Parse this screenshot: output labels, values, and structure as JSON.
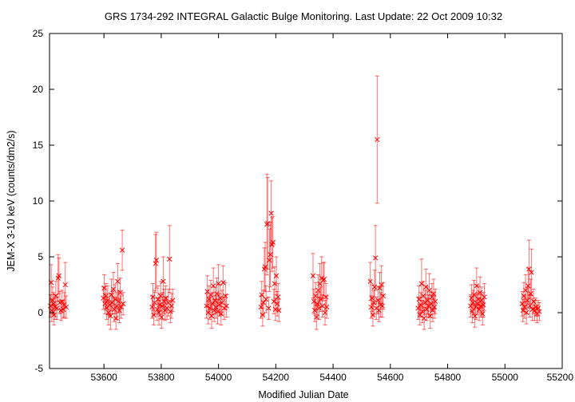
{
  "chart_data": {
    "type": "scatter",
    "title": "GRS 1734-292   INTEGRAL Galactic Bulge Monitoring.  Last Update: 22 Oct 2009 10:32",
    "xlabel": "Modified Julian Date",
    "ylabel": "JEM-X 3-10 keV (counts/dm2/s)",
    "xlim": [
      53410,
      55200
    ],
    "ylim": [
      -5,
      25
    ],
    "xticks": [
      53600,
      53800,
      54000,
      54200,
      54400,
      54600,
      54800,
      55000,
      55200
    ],
    "yticks": [
      -5,
      0,
      5,
      10,
      15,
      20,
      25
    ],
    "grid": false,
    "legend": "none",
    "colors": {
      "points": "#ff0000",
      "errorbars": "#ff0000",
      "axes": "#000000"
    },
    "points": [
      [
        53413,
        0.6,
        1.0
      ],
      [
        53416,
        2.7,
        1.6
      ],
      [
        53418,
        0.2,
        1.0
      ],
      [
        53421,
        1.1,
        1.2
      ],
      [
        53424,
        0.8,
        1.0
      ],
      [
        53426,
        -0.2,
        0.9
      ],
      [
        53429,
        0.5,
        1.1
      ],
      [
        53432,
        1.5,
        1.3
      ],
      [
        53436,
        0.4,
        1.0
      ],
      [
        53440,
        3.1,
        2.1
      ],
      [
        53443,
        3.3,
        1.6
      ],
      [
        53446,
        0.9,
        1.0
      ],
      [
        53450,
        0.2,
        0.9
      ],
      [
        53454,
        1.0,
        1.0
      ],
      [
        53458,
        0.3,
        0.8
      ],
      [
        53461,
        0.7,
        1.1
      ],
      [
        53465,
        2.5,
        2.0
      ],
      [
        53468,
        0.5,
        1.0
      ],
      [
        53598,
        1.3,
        1.0
      ],
      [
        53601,
        2.2,
        1.2
      ],
      [
        53604,
        0.8,
        0.9
      ],
      [
        53607,
        1.5,
        1.1
      ],
      [
        53610,
        0.4,
        1.0
      ],
      [
        53613,
        1.1,
        1.3
      ],
      [
        53616,
        0.0,
        1.1
      ],
      [
        53620,
        0.7,
        1.0
      ],
      [
        53623,
        -0.3,
        1.2
      ],
      [
        53626,
        1.6,
        1.4
      ],
      [
        53629,
        0.9,
        1.0
      ],
      [
        53633,
        2.1,
        1.5
      ],
      [
        53636,
        0.3,
        1.1
      ],
      [
        53639,
        1.2,
        1.3
      ],
      [
        53642,
        -0.5,
        1.0
      ],
      [
        53645,
        0.6,
        1.2
      ],
      [
        53648,
        2.8,
        1.6
      ],
      [
        53651,
        1.0,
        1.0
      ],
      [
        53654,
        0.2,
        1.1
      ],
      [
        53657,
        1.8,
        1.3
      ],
      [
        53660,
        0.5,
        1.0
      ],
      [
        53664,
        5.6,
        1.8
      ],
      [
        53667,
        0.8,
        1.0
      ],
      [
        53768,
        0.5,
        1.0
      ],
      [
        53771,
        1.4,
        1.2
      ],
      [
        53774,
        -0.2,
        0.9
      ],
      [
        53777,
        0.9,
        1.1
      ],
      [
        53780,
        4.4,
        2.6
      ],
      [
        53783,
        4.7,
        2.5
      ],
      [
        53786,
        0.3,
        1.0
      ],
      [
        53789,
        1.2,
        1.2
      ],
      [
        53792,
        0.0,
        1.1
      ],
      [
        53795,
        0.7,
        1.0
      ],
      [
        53798,
        1.5,
        1.3
      ],
      [
        53801,
        -0.4,
        1.0
      ],
      [
        53804,
        0.6,
        1.2
      ],
      [
        53807,
        2.8,
        2.2
      ],
      [
        53810,
        1.0,
        1.1
      ],
      [
        53813,
        0.2,
        0.9
      ],
      [
        53816,
        1.3,
        1.1
      ],
      [
        53820,
        0.4,
        1.0
      ],
      [
        53825,
        0.9,
        1.2
      ],
      [
        53829,
        4.8,
        3.0
      ],
      [
        53832,
        0.1,
        1.0
      ],
      [
        53836,
        0.6,
        1.1
      ],
      [
        53840,
        1.1,
        1.0
      ],
      [
        53958,
        0.6,
        1.1
      ],
      [
        53961,
        1.9,
        1.4
      ],
      [
        53964,
        0.0,
        1.0
      ],
      [
        53967,
        1.2,
        1.2
      ],
      [
        53970,
        0.4,
        1.0
      ],
      [
        53973,
        1.6,
        1.3
      ],
      [
        53976,
        -0.3,
        1.1
      ],
      [
        53979,
        0.8,
        1.0
      ],
      [
        53982,
        2.4,
        1.6
      ],
      [
        53985,
        0.2,
        1.0
      ],
      [
        53988,
        1.1,
        1.2
      ],
      [
        53991,
        0.5,
        1.0
      ],
      [
        53994,
        1.7,
        1.4
      ],
      [
        53997,
        0.1,
        1.1
      ],
      [
        54000,
        2.6,
        1.7
      ],
      [
        54003,
        0.7,
        1.0
      ],
      [
        54006,
        1.3,
        1.2
      ],
      [
        54009,
        -0.1,
        1.0
      ],
      [
        54012,
        0.9,
        1.1
      ],
      [
        54016,
        2.7,
        1.5
      ],
      [
        54020,
        0.4,
        1.0
      ],
      [
        54024,
        1.5,
        1.2
      ],
      [
        54028,
        0.6,
        1.0
      ],
      [
        54148,
        0.5,
        1.0
      ],
      [
        54151,
        1.6,
        1.2
      ],
      [
        54154,
        -0.2,
        1.0
      ],
      [
        54157,
        0.9,
        1.1
      ],
      [
        54160,
        3.9,
        1.9
      ],
      [
        54163,
        4.1,
        2.2
      ],
      [
        54166,
        1.2,
        1.2
      ],
      [
        54169,
        7.9,
        4.5
      ],
      [
        54172,
        8.0,
        4.1
      ],
      [
        54175,
        0.4,
        1.0
      ],
      [
        54178,
        4.7,
        2.8
      ],
      [
        54181,
        5.2,
        2.9
      ],
      [
        54184,
        8.9,
        2.9
      ],
      [
        54187,
        6.1,
        2.4
      ],
      [
        54190,
        6.3,
        2.3
      ],
      [
        54193,
        1.0,
        1.1
      ],
      [
        54196,
        2.6,
        1.5
      ],
      [
        54199,
        0.3,
        1.0
      ],
      [
        54202,
        3.3,
        1.7
      ],
      [
        54205,
        0.8,
        1.1
      ],
      [
        54208,
        1.4,
        1.2
      ],
      [
        54211,
        0.2,
        1.0
      ],
      [
        54330,
        3.3,
        2.0
      ],
      [
        54333,
        1.0,
        1.1
      ],
      [
        54336,
        0.2,
        1.0
      ],
      [
        54339,
        1.5,
        1.2
      ],
      [
        54342,
        -0.4,
        1.1
      ],
      [
        54345,
        0.8,
        1.0
      ],
      [
        54348,
        2.0,
        1.4
      ],
      [
        54351,
        0.4,
        1.0
      ],
      [
        54354,
        2.6,
        1.8
      ],
      [
        54357,
        1.2,
        1.1
      ],
      [
        54360,
        3.1,
        1.9
      ],
      [
        54363,
        0.6,
        1.0
      ],
      [
        54366,
        2.9,
        1.6
      ],
      [
        54369,
        3.0,
        1.5
      ],
      [
        54372,
        0.0,
        1.1
      ],
      [
        54375,
        1.4,
        1.2
      ],
      [
        54378,
        0.5,
        1.0
      ],
      [
        54530,
        2.8,
        1.7
      ],
      [
        54533,
        0.5,
        1.0
      ],
      [
        54536,
        1.3,
        1.2
      ],
      [
        54539,
        -0.2,
        1.0
      ],
      [
        54542,
        0.9,
        1.1
      ],
      [
        54545,
        2.3,
        1.5
      ],
      [
        54548,
        4.9,
        2.9
      ],
      [
        54551,
        0.4,
        1.0
      ],
      [
        54554,
        15.5,
        5.7
      ],
      [
        54557,
        1.1,
        1.2
      ],
      [
        54560,
        0.2,
        1.0
      ],
      [
        54563,
        2.2,
        1.4
      ],
      [
        54566,
        0.7,
        1.1
      ],
      [
        54569,
        2.5,
        1.7
      ],
      [
        54572,
        0.6,
        1.0
      ],
      [
        54575,
        1.5,
        1.2
      ],
      [
        54697,
        0.4,
        1.0
      ],
      [
        54700,
        1.2,
        1.2
      ],
      [
        54703,
        -0.2,
        0.9
      ],
      [
        54706,
        0.7,
        1.1
      ],
      [
        54709,
        2.6,
        2.2
      ],
      [
        54712,
        0.1,
        1.0
      ],
      [
        54715,
        1.5,
        1.3
      ],
      [
        54718,
        -0.5,
        1.0
      ],
      [
        54721,
        0.9,
        1.1
      ],
      [
        54724,
        2.3,
        1.6
      ],
      [
        54727,
        0.3,
        1.0
      ],
      [
        54730,
        1.1,
        1.2
      ],
      [
        54733,
        0.6,
        1.0
      ],
      [
        54736,
        2.0,
        1.5
      ],
      [
        54739,
        -0.3,
        1.1
      ],
      [
        54742,
        0.8,
        1.0
      ],
      [
        54745,
        1.4,
        1.2
      ],
      [
        54748,
        0.2,
        1.0
      ],
      [
        54751,
        1.7,
        1.3
      ],
      [
        54754,
        0.5,
        1.0
      ],
      [
        54757,
        1.0,
        1.1
      ],
      [
        54880,
        0.6,
        1.0
      ],
      [
        54883,
        1.3,
        1.2
      ],
      [
        54886,
        0.1,
        1.0
      ],
      [
        54889,
        0.9,
        1.1
      ],
      [
        54892,
        1.6,
        1.3
      ],
      [
        54895,
        -0.3,
        1.0
      ],
      [
        54898,
        0.5,
        1.1
      ],
      [
        54901,
        2.4,
        1.6
      ],
      [
        54904,
        0.8,
        1.0
      ],
      [
        54907,
        1.2,
        1.2
      ],
      [
        54910,
        0.3,
        1.0
      ],
      [
        54913,
        1.8,
        1.4
      ],
      [
        54916,
        0.6,
        1.0
      ],
      [
        54919,
        1.1,
        1.2
      ],
      [
        54922,
        -0.1,
        1.0
      ],
      [
        54925,
        0.7,
        1.1
      ],
      [
        54928,
        1.4,
        1.2
      ],
      [
        55060,
        0.8,
        1.1
      ],
      [
        55063,
        0.2,
        1.0
      ],
      [
        55066,
        1.5,
        1.2
      ],
      [
        55069,
        0.5,
        1.0
      ],
      [
        55072,
        2.0,
        1.4
      ],
      [
        55075,
        0.0,
        1.0
      ],
      [
        55078,
        1.1,
        1.2
      ],
      [
        55081,
        2.4,
        1.6
      ],
      [
        55084,
        3.9,
        2.6
      ],
      [
        55087,
        0.6,
        1.0
      ],
      [
        55090,
        1.7,
        1.3
      ],
      [
        55093,
        3.6,
        2.1
      ],
      [
        55096,
        0.3,
        1.0
      ],
      [
        55100,
        1.0,
        1.1
      ],
      [
        55104,
        0.2,
        0.9
      ],
      [
        55108,
        0.5,
        0.8
      ],
      [
        55112,
        -0.1,
        0.8
      ],
      [
        55116,
        0.4,
        0.7
      ],
      [
        55120,
        0.1,
        0.8
      ]
    ]
  }
}
